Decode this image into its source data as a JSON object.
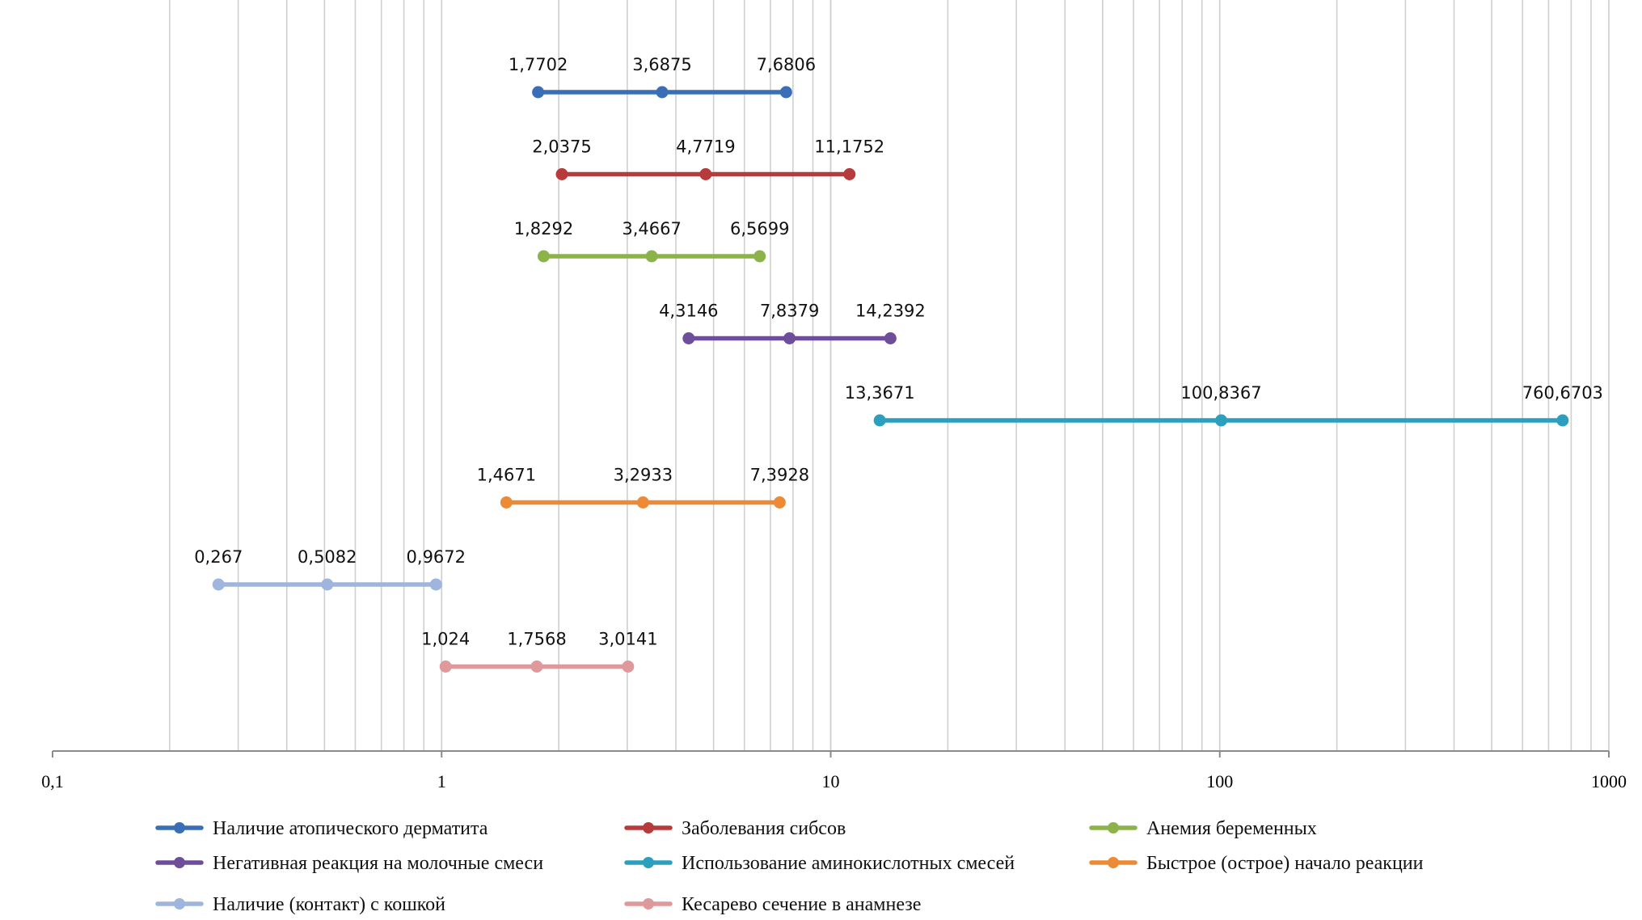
{
  "chart_data": {
    "type": "line",
    "subtype": "forest-plot",
    "xscale": "log",
    "xlim": [
      0.1,
      1000
    ],
    "grid": true,
    "legend_position": "bottom",
    "ticks": [
      {
        "value": 0.1,
        "label": "0,1"
      },
      {
        "value": 1,
        "label": "1"
      },
      {
        "value": 10,
        "label": "10"
      },
      {
        "value": 100,
        "label": "100"
      },
      {
        "value": 1000,
        "label": "1000"
      }
    ],
    "series": [
      {
        "name": "Наличие атопического дерматита",
        "color": "#3a6fb7",
        "values": [
          1.7702,
          3.6875,
          7.6806
        ],
        "labels": [
          "1,7702",
          "3,6875",
          "7,6806"
        ]
      },
      {
        "name": "Заболевания сибсов",
        "color": "#b73b3a",
        "values": [
          2.0375,
          4.7719,
          11.1752
        ],
        "labels": [
          "2,0375",
          "4,7719",
          "11,1752"
        ]
      },
      {
        "name": "Анемия беременных",
        "color": "#8cb34a",
        "values": [
          1.8292,
          3.4667,
          6.5699
        ],
        "labels": [
          "1,8292",
          "3,4667",
          "6,5699"
        ]
      },
      {
        "name": "Негативная реакция на молочные смеси",
        "color": "#6e4d9a",
        "values": [
          4.3146,
          7.8379,
          14.2392
        ],
        "labels": [
          "4,3146",
          "7,8379",
          "14,2392"
        ]
      },
      {
        "name": "Использование аминокислотных смесей",
        "color": "#2d9fbe",
        "values": [
          13.3671,
          100.8367,
          760.6703
        ],
        "labels": [
          "13,3671",
          "100,8367",
          "760,6703"
        ]
      },
      {
        "name": "Быстрое (острое) начало реакции",
        "color": "#ec8a35",
        "values": [
          1.4671,
          3.2933,
          7.3928
        ],
        "labels": [
          "1,4671",
          "3,2933",
          "7,3928"
        ]
      },
      {
        "name": "Наличие (контакт) с кошкой",
        "color": "#9fb5dd",
        "values": [
          0.267,
          0.5082,
          0.9672
        ],
        "labels": [
          "0,267",
          "0,5082",
          "0,9672"
        ]
      },
      {
        "name": "Кесарево сечение в анамнезе",
        "color": "#e0999a",
        "values": [
          1.024,
          1.7568,
          3.0141
        ],
        "labels": [
          "1,024",
          "1,7568",
          "3,0141"
        ]
      }
    ]
  }
}
